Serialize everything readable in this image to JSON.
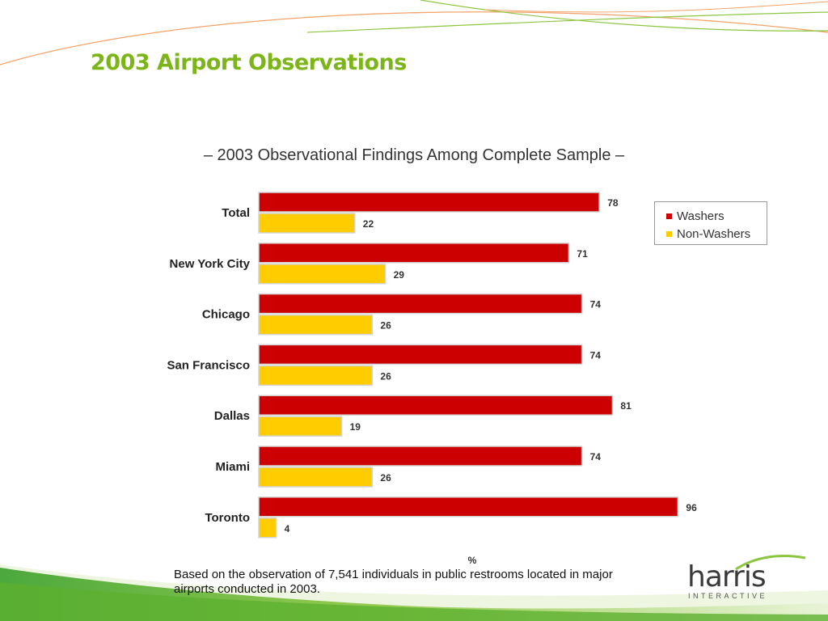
{
  "slide": {
    "title": "2003 Airport Observations",
    "footnote": "Based on the observation of 7,541 individuals in public restrooms located in major airports conducted in 2003."
  },
  "logo": {
    "name": "harris",
    "tagline": "INTERACTIVE"
  },
  "colors": {
    "washers": "#cc0000",
    "non_washers": "#ffcc00",
    "title": "#7cb518"
  },
  "chart_data": {
    "type": "bar",
    "orientation": "horizontal",
    "title": "– 2003 Observational Findings Among Complete Sample –",
    "xlabel": "%",
    "xlim": [
      0,
      100
    ],
    "grid": false,
    "legend_position": "top-right",
    "categories": [
      "Total",
      "New York City",
      "Chicago",
      "San Francisco",
      "Dallas",
      "Miami",
      "Toronto"
    ],
    "series": [
      {
        "name": "Washers",
        "color": "#cc0000",
        "values": [
          78,
          71,
          74,
          74,
          81,
          74,
          96
        ]
      },
      {
        "name": "Non-Washers",
        "color": "#ffcc00",
        "values": [
          22,
          29,
          26,
          26,
          19,
          26,
          4
        ]
      }
    ]
  }
}
